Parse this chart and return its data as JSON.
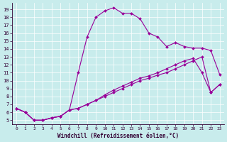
{
  "xlabel": "Windchill (Refroidissement éolien,°C)",
  "bg_color": "#c8ecec",
  "line_color": "#990099",
  "x_ticks": [
    0,
    1,
    2,
    3,
    4,
    5,
    6,
    7,
    8,
    9,
    10,
    11,
    12,
    13,
    14,
    15,
    16,
    17,
    18,
    19,
    20,
    21,
    22,
    23
  ],
  "y_ticks": [
    5,
    6,
    7,
    8,
    9,
    10,
    11,
    12,
    13,
    14,
    15,
    16,
    17,
    18,
    19
  ],
  "ylim": [
    4.5,
    19.8
  ],
  "xlim": [
    -0.5,
    23.5
  ],
  "line1_x": [
    0,
    1,
    2,
    3,
    4,
    5,
    6,
    7,
    8,
    9,
    10,
    11,
    12,
    13,
    14,
    15,
    16,
    17,
    18,
    19,
    20,
    21,
    22,
    23
  ],
  "line1_y": [
    6.5,
    6.0,
    5.0,
    5.0,
    5.3,
    5.5,
    6.3,
    11.0,
    15.5,
    18.0,
    18.8,
    19.2,
    18.5,
    18.5,
    17.8,
    16.0,
    15.5,
    14.3,
    14.8,
    14.3,
    14.1,
    14.1,
    13.8,
    10.8
  ],
  "line2_x": [
    0,
    1,
    2,
    3,
    4,
    5,
    6,
    7,
    8,
    9,
    10,
    11,
    12,
    13,
    14,
    15,
    16,
    17,
    18,
    19,
    20,
    21,
    22,
    23
  ],
  "line2_y": [
    6.5,
    6.0,
    5.0,
    5.0,
    5.3,
    5.5,
    6.3,
    6.5,
    7.0,
    7.5,
    8.2,
    8.8,
    9.3,
    9.8,
    10.3,
    10.6,
    11.0,
    11.5,
    12.0,
    12.5,
    12.8,
    11.0,
    8.5,
    9.5
  ],
  "line3_x": [
    0,
    1,
    2,
    3,
    4,
    5,
    6,
    7,
    8,
    9,
    10,
    11,
    12,
    13,
    14,
    15,
    16,
    17,
    18,
    19,
    20,
    21,
    22,
    23
  ],
  "line3_y": [
    6.5,
    6.0,
    5.0,
    5.0,
    5.3,
    5.5,
    6.3,
    6.5,
    7.0,
    7.5,
    8.0,
    8.5,
    9.0,
    9.5,
    10.0,
    10.3,
    10.7,
    11.0,
    11.5,
    12.0,
    12.5,
    13.0,
    8.5,
    9.5
  ]
}
